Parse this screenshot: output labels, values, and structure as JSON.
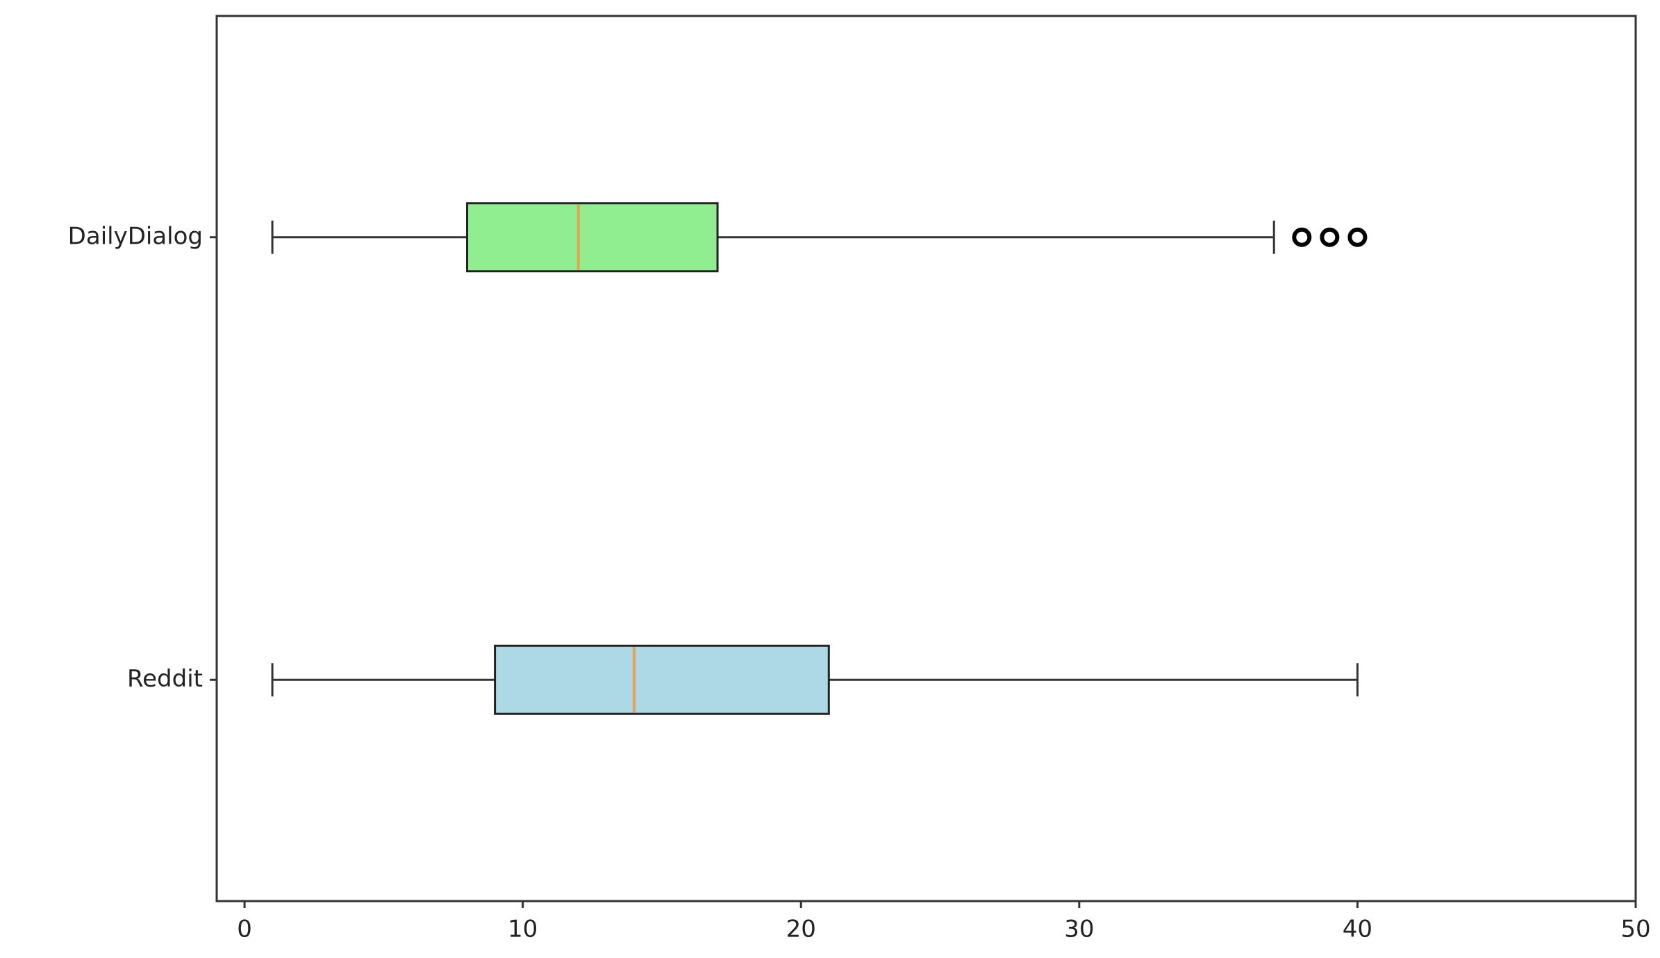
{
  "chart_data": {
    "type": "boxplot",
    "orientation": "horizontal",
    "categories": [
      "Reddit",
      "DailyDialog"
    ],
    "boxes": [
      {
        "name": "Reddit",
        "color": "#add8e6",
        "whislo": 1,
        "q1": 9,
        "med": 14,
        "q3": 21,
        "whishi": 40,
        "fliers": []
      },
      {
        "name": "DailyDialog",
        "color": "#90ee90",
        "whislo": 1,
        "q1": 8,
        "med": 12,
        "q3": 17,
        "whishi": 37,
        "fliers": [
          38,
          39,
          40
        ]
      }
    ],
    "median_color": "#e8a050",
    "xlim": [
      -1,
      50
    ],
    "xticks": [
      0,
      10,
      20,
      30,
      40,
      50
    ],
    "grid": false
  }
}
